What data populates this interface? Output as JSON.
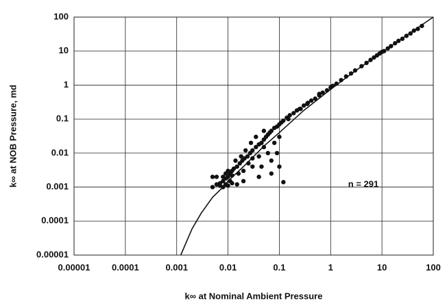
{
  "chart_data": {
    "type": "scatter",
    "xlabel": "k∞ at Nominal Ambient Pressure",
    "ylabel": "k∞ at NOB Pressure, md",
    "annotation": "n = 291",
    "log_x": true,
    "log_y": true,
    "grid": true,
    "xlim": [
      1e-05,
      100
    ],
    "ylim": [
      1e-05,
      100
    ],
    "xticks": [
      1e-05,
      0.0001,
      0.001,
      0.01,
      0.1,
      1,
      10,
      100
    ],
    "yticks": [
      1e-05,
      0.0001,
      0.001,
      0.01,
      0.1,
      1,
      10,
      100
    ],
    "series": [
      {
        "mode": "markers",
        "color": "#111111",
        "x": [
          60,
          50,
          42,
          36,
          30,
          25,
          21,
          18,
          15,
          13,
          11,
          10,
          9,
          8,
          7,
          6,
          5,
          4,
          3,
          2.5,
          2,
          1.6,
          1.3,
          1.1,
          1,
          0.85,
          0.7,
          0.6,
          0.5,
          0.42,
          0.36,
          0.3,
          0.26,
          0.22,
          0.19,
          0.16,
          0.14,
          0.12,
          0.11,
          0.1,
          0.09,
          0.08,
          0.07,
          0.065,
          0.06,
          0.055,
          0.05,
          0.045,
          0.04,
          0.035,
          0.03,
          0.027,
          0.024,
          0.021,
          0.019,
          0.017,
          0.015,
          0.013,
          0.012,
          0.011,
          0.01,
          0.009,
          0.008,
          0.007,
          0.006,
          0.005,
          0.005,
          0.006,
          0.007,
          0.008,
          0.009,
          0.01,
          0.011,
          0.012,
          0.014,
          0.016,
          0.018,
          0.02,
          0.022,
          0.025,
          0.028,
          0.03,
          0.035,
          0.04,
          0.045,
          0.05,
          0.06,
          0.07,
          0.08,
          0.1,
          0.12,
          0.15,
          0.09,
          0.1,
          0.07,
          0.05,
          0.04,
          0.03,
          0.02,
          0.015,
          0.012,
          0.01,
          0.009,
          0.008,
          0.25,
          0.35,
          0.6
        ],
        "values": [
          55,
          45,
          40,
          33,
          28,
          23,
          20,
          17,
          14,
          12,
          10,
          9.5,
          8.5,
          7.5,
          6.5,
          5.5,
          4.5,
          3.6,
          2.7,
          2.2,
          1.8,
          1.4,
          1.1,
          0.95,
          0.85,
          0.7,
          0.6,
          0.5,
          0.4,
          0.35,
          0.3,
          0.25,
          0.2,
          0.18,
          0.15,
          0.13,
          0.11,
          0.09,
          0.08,
          0.07,
          0.06,
          0.055,
          0.045,
          0.04,
          0.035,
          0.03,
          0.025,
          0.02,
          0.018,
          0.015,
          0.012,
          0.01,
          0.008,
          0.007,
          0.006,
          0.005,
          0.004,
          0.0035,
          0.003,
          0.0025,
          0.002,
          0.0018,
          0.0015,
          0.0013,
          0.0012,
          0.001,
          0.002,
          0.002,
          0.0011,
          0.001,
          0.0012,
          0.0011,
          0.0015,
          0.0022,
          0.006,
          0.0025,
          0.008,
          0.003,
          0.012,
          0.005,
          0.02,
          0.004,
          0.03,
          0.008,
          0.004,
          0.045,
          0.01,
          0.006,
          0.02,
          0.004,
          0.0014,
          0.1,
          0.01,
          0.03,
          0.0025,
          0.015,
          0.002,
          0.007,
          0.0015,
          0.0012,
          0.0013,
          0.003,
          0.0025,
          0.002,
          0.2,
          0.28,
          0.55
        ]
      },
      {
        "mode": "line",
        "color": "#111111",
        "x": [
          0.0012,
          0.002,
          0.003,
          0.005,
          0.008,
          0.01,
          0.02,
          0.05,
          0.1,
          0.3,
          1,
          3,
          10,
          30,
          100
        ],
        "values": [
          1e-05,
          6e-05,
          0.00017,
          0.0005,
          0.001,
          0.0015,
          0.004,
          0.016,
          0.04,
          0.18,
          0.75,
          2.6,
          9.2,
          29,
          100
        ]
      }
    ]
  }
}
